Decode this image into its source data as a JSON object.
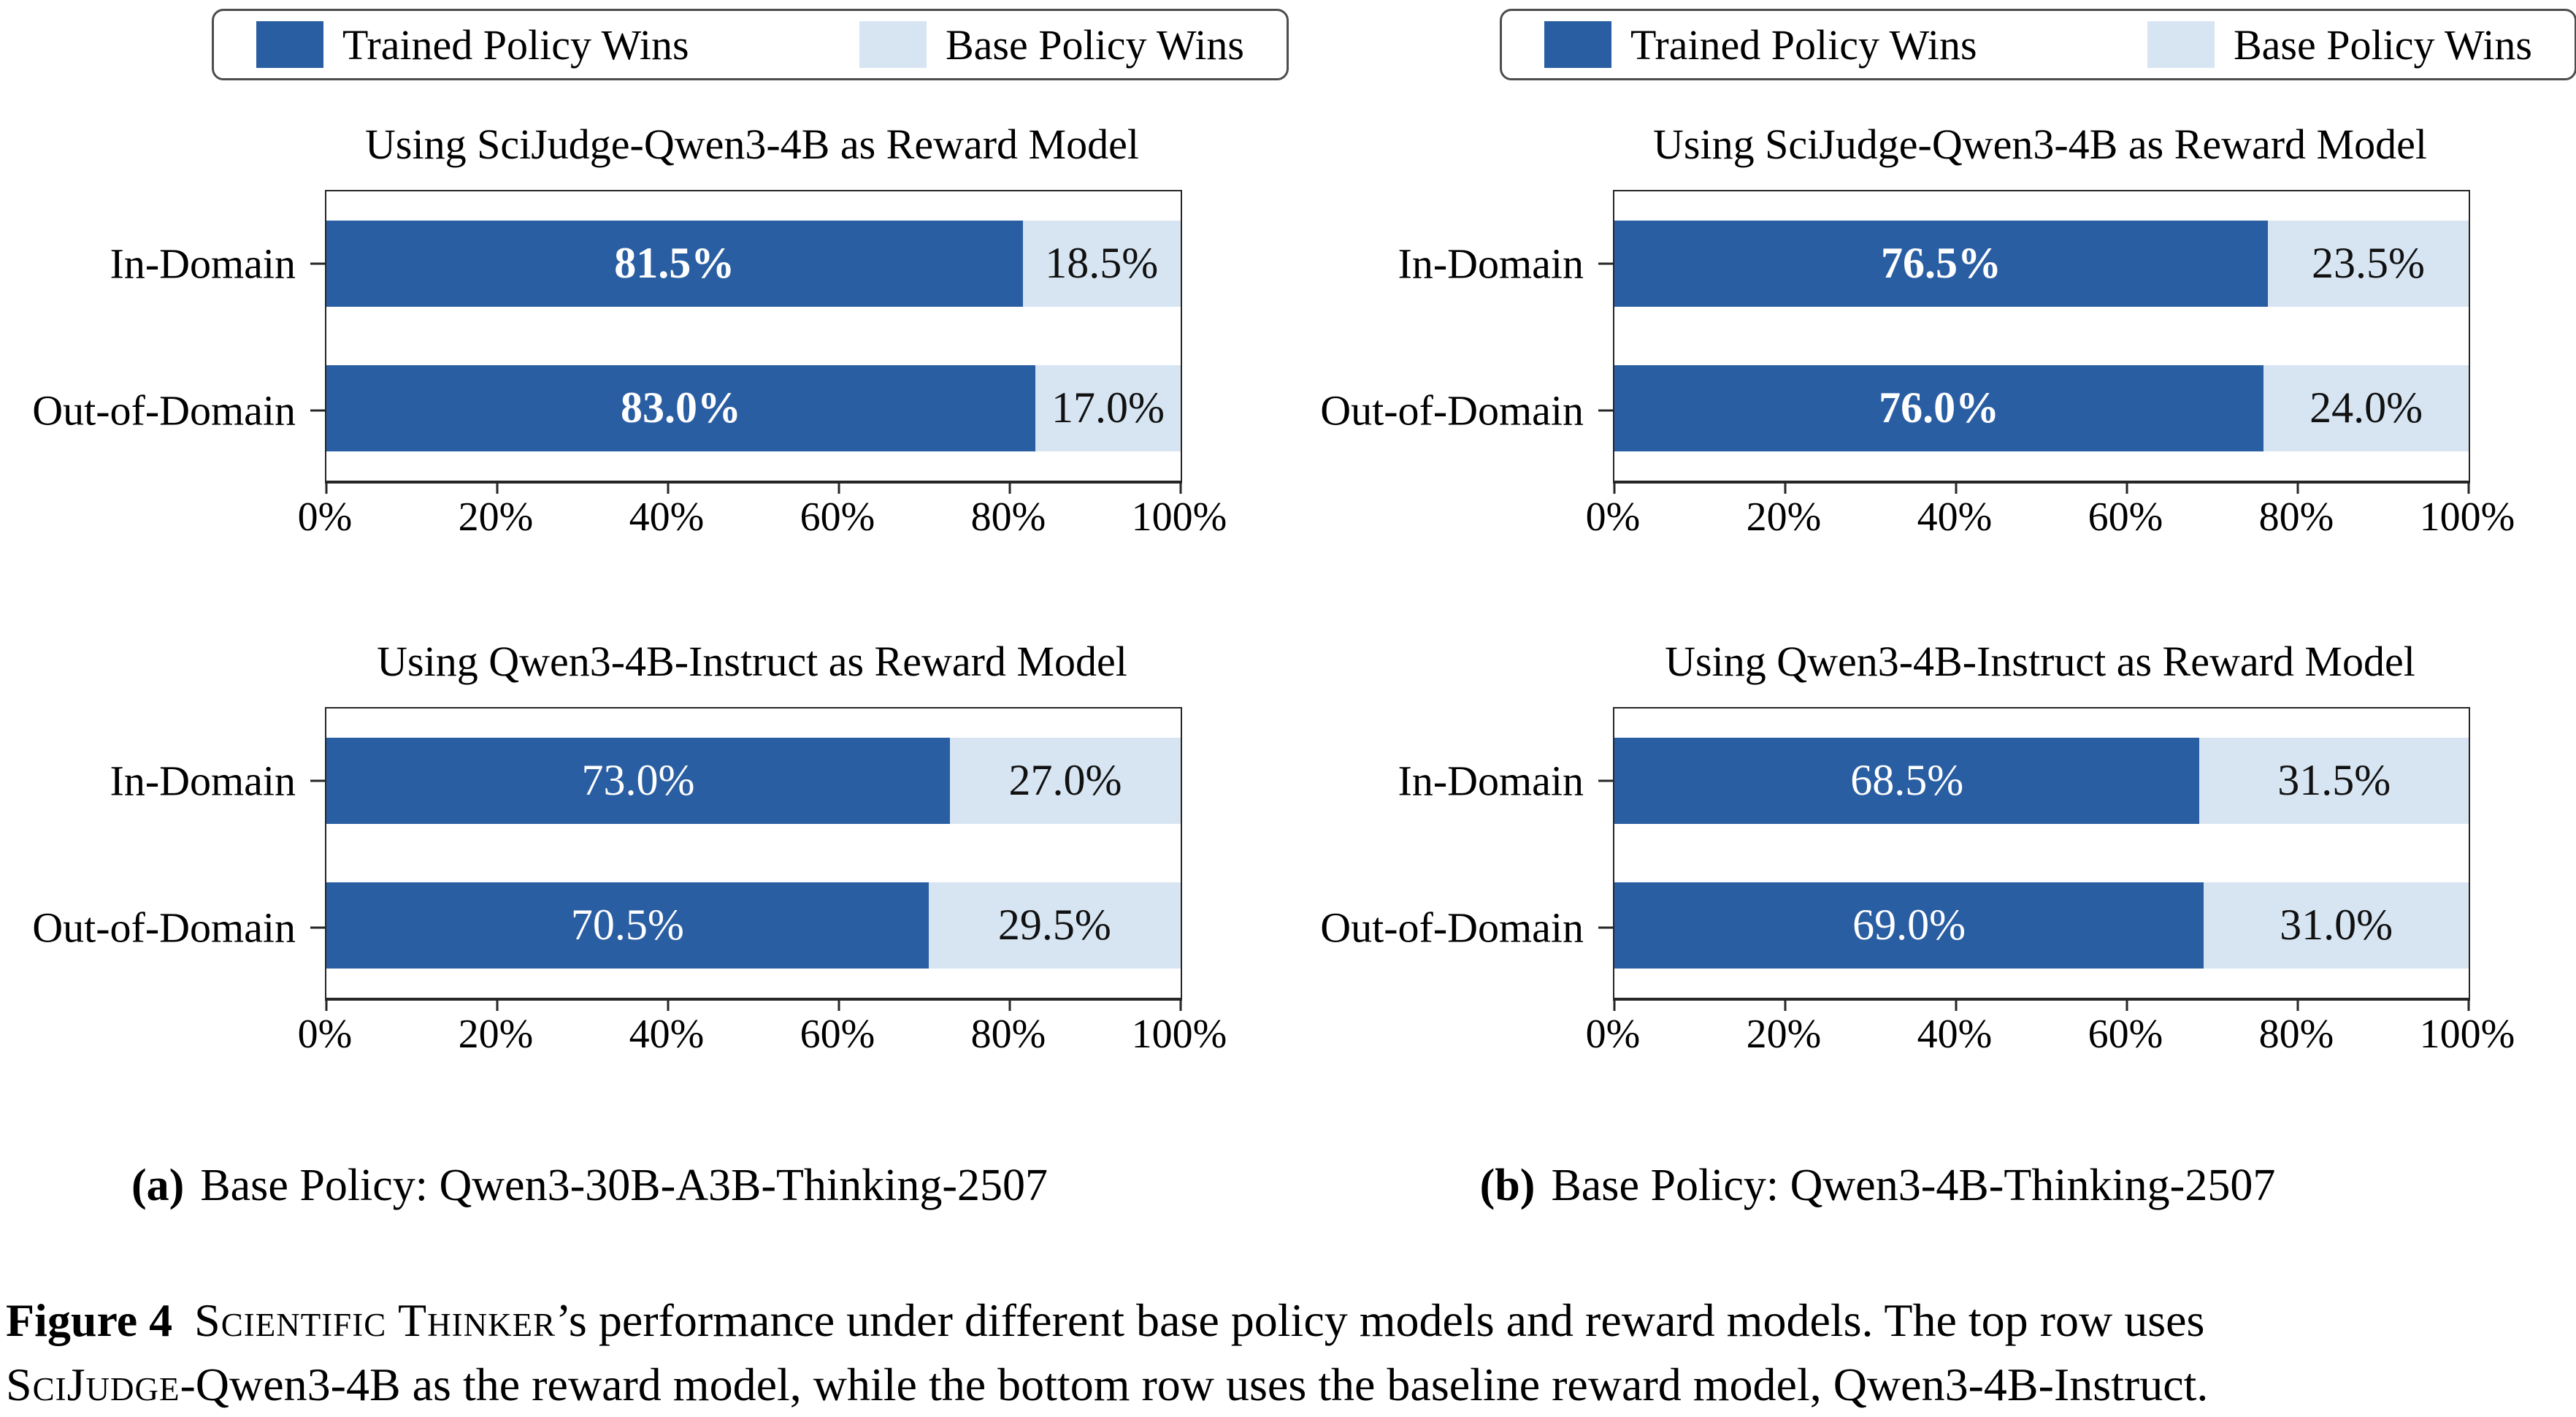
{
  "figure": {
    "legend": {
      "items": [
        {
          "label": "Trained Policy Wins",
          "color": "#2A5EA3"
        },
        {
          "label": "Base Policy Wins",
          "color": "#D7E5F3"
        }
      ]
    },
    "columns": [
      {
        "subcaption_marker": "(a)",
        "subcaption_text": "Base Policy: Qwen3-30B-A3B-Thinking-2507"
      },
      {
        "subcaption_marker": "(b)",
        "subcaption_text": "Base Policy: Qwen3-4B-Thinking-2507"
      }
    ],
    "caption": {
      "fig_label": "Figure 4",
      "seg_smallcaps1": "Scientific Thinker",
      "seg1": "’s performance under different base policy models and reward models. The top row uses",
      "seg_smallcaps2": "SciJudge",
      "seg2": "-Qwen3-4B as the reward model, while the bottom row uses the baseline reward model, Qwen3-4B-Instruct."
    }
  },
  "chart_data": [
    {
      "panel": "a",
      "type": "bar",
      "orientation": "horizontal",
      "stacked": true,
      "title": "Using SciJudge-Qwen3-4B as Reward Model",
      "categories": [
        "In-Domain",
        "Out-of-Domain"
      ],
      "series": [
        {
          "name": "Trained Policy Wins",
          "color": "#2A5EA3",
          "values": [
            81.5,
            83.0
          ],
          "labels": [
            "81.5%",
            "83.0%"
          ],
          "label_bold": true,
          "label_color": "#ffffff"
        },
        {
          "name": "Base Policy Wins",
          "color": "#D7E5F3",
          "values": [
            18.5,
            17.0
          ],
          "labels": [
            "18.5%",
            "17.0%"
          ],
          "label_bold": false,
          "label_color": "#111111"
        }
      ],
      "xlim": [
        0,
        100
      ],
      "xtick_values": [
        0,
        20,
        40,
        60,
        80,
        100
      ],
      "xtick_labels": [
        "0%",
        "20%",
        "40%",
        "60%",
        "80%",
        "100%"
      ]
    },
    {
      "panel": "a",
      "type": "bar",
      "orientation": "horizontal",
      "stacked": true,
      "title": "Using Qwen3-4B-Instruct as Reward Model",
      "categories": [
        "In-Domain",
        "Out-of-Domain"
      ],
      "series": [
        {
          "name": "Trained Policy Wins",
          "color": "#2A5EA3",
          "values": [
            73.0,
            70.5
          ],
          "labels": [
            "73.0%",
            "70.5%"
          ],
          "label_bold": false,
          "label_color": "#ffffff"
        },
        {
          "name": "Base Policy Wins",
          "color": "#D7E5F3",
          "values": [
            27.0,
            29.5
          ],
          "labels": [
            "27.0%",
            "29.5%"
          ],
          "label_bold": false,
          "label_color": "#111111"
        }
      ],
      "xlim": [
        0,
        100
      ],
      "xtick_values": [
        0,
        20,
        40,
        60,
        80,
        100
      ],
      "xtick_labels": [
        "0%",
        "20%",
        "40%",
        "60%",
        "80%",
        "100%"
      ]
    },
    {
      "panel": "b",
      "type": "bar",
      "orientation": "horizontal",
      "stacked": true,
      "title": "Using SciJudge-Qwen3-4B as Reward Model",
      "categories": [
        "In-Domain",
        "Out-of-Domain"
      ],
      "series": [
        {
          "name": "Trained Policy Wins",
          "color": "#2A5EA3",
          "values": [
            76.5,
            76.0
          ],
          "labels": [
            "76.5%",
            "76.0%"
          ],
          "label_bold": true,
          "label_color": "#ffffff"
        },
        {
          "name": "Base Policy Wins",
          "color": "#D7E5F3",
          "values": [
            23.5,
            24.0
          ],
          "labels": [
            "23.5%",
            "24.0%"
          ],
          "label_bold": false,
          "label_color": "#111111"
        }
      ],
      "xlim": [
        0,
        100
      ],
      "xtick_values": [
        0,
        20,
        40,
        60,
        80,
        100
      ],
      "xtick_labels": [
        "0%",
        "20%",
        "40%",
        "60%",
        "80%",
        "100%"
      ]
    },
    {
      "panel": "b",
      "type": "bar",
      "orientation": "horizontal",
      "stacked": true,
      "title": "Using Qwen3-4B-Instruct as Reward Model",
      "categories": [
        "In-Domain",
        "Out-of-Domain"
      ],
      "series": [
        {
          "name": "Trained Policy Wins",
          "color": "#2A5EA3",
          "values": [
            68.5,
            69.0
          ],
          "labels": [
            "68.5%",
            "69.0%"
          ],
          "label_bold": false,
          "label_color": "#ffffff"
        },
        {
          "name": "Base Policy Wins",
          "color": "#D7E5F3",
          "values": [
            31.5,
            31.0
          ],
          "labels": [
            "31.5%",
            "31.0%"
          ],
          "label_bold": false,
          "label_color": "#111111"
        }
      ],
      "xlim": [
        0,
        100
      ],
      "xtick_values": [
        0,
        20,
        40,
        60,
        80,
        100
      ],
      "xtick_labels": [
        "0%",
        "20%",
        "40%",
        "60%",
        "80%",
        "100%"
      ]
    }
  ]
}
